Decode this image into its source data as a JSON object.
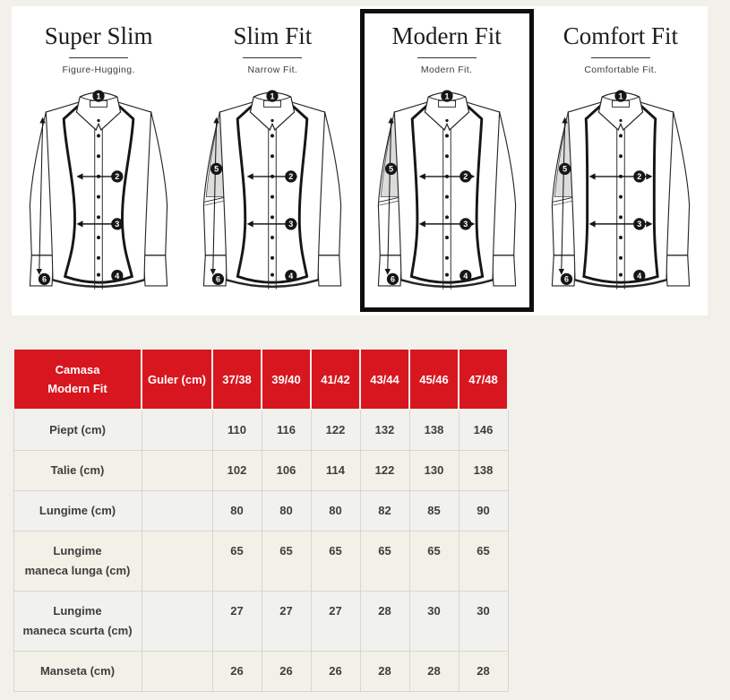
{
  "colors": {
    "page_background": "#f2f0ea",
    "panel_background": "#ffffff",
    "accent_red": "#d8161f",
    "ink": "#1d1d1b",
    "table_text": "#3e3e3e",
    "selected_border": "#0e0e0e",
    "sleeve_shade": "#dcdcda"
  },
  "fits": [
    {
      "id": "super-slim",
      "title": "Super Slim",
      "subtitle": "Figure-Hugging.",
      "selected": false,
      "fit": "super-slim",
      "badges": [
        "1",
        "2",
        "3",
        "4",
        "6"
      ]
    },
    {
      "id": "slim-fit",
      "title": "Slim Fit",
      "subtitle": "Narrow Fit.",
      "selected": false,
      "fit": "slim",
      "badges": [
        "1",
        "2",
        "3",
        "4",
        "5",
        "6"
      ]
    },
    {
      "id": "modern-fit",
      "title": "Modern Fit",
      "subtitle": "Modern Fit.",
      "selected": true,
      "fit": "modern",
      "badges": [
        "1",
        "2",
        "3",
        "4",
        "5",
        "6"
      ]
    },
    {
      "id": "comfort-fit",
      "title": "Comfort Fit",
      "subtitle": "Comfortable Fit.",
      "selected": false,
      "fit": "comfort",
      "badges": [
        "1",
        "2",
        "3",
        "4",
        "5",
        "6"
      ]
    }
  ],
  "table": {
    "title": "Camasa\nModern Fit",
    "columns": [
      "Guler (cm)",
      "37/38",
      "39/40",
      "41/42",
      "43/44",
      "45/46",
      "47/48"
    ],
    "rows": [
      {
        "label": "Piept (cm)",
        "guler": "",
        "values": [
          "110",
          "116",
          "122",
          "132",
          "138",
          "146"
        ]
      },
      {
        "label": "Talie (cm)",
        "guler": "",
        "values": [
          "102",
          "106",
          "114",
          "122",
          "130",
          "138"
        ]
      },
      {
        "label": "Lungime (cm)",
        "guler": "",
        "values": [
          "80",
          "80",
          "80",
          "82",
          "85",
          "90"
        ]
      },
      {
        "label": "Lungime\nmaneca lunga (cm)",
        "guler": "",
        "values": [
          "65",
          "65",
          "65",
          "65",
          "65",
          "65"
        ]
      },
      {
        "label": "Lungime\nmaneca scurta (cm)",
        "guler": "",
        "values": [
          "27",
          "27",
          "27",
          "28",
          "30",
          "30"
        ]
      },
      {
        "label": "Manseta (cm)",
        "guler": "",
        "values": [
          "26",
          "26",
          "26",
          "28",
          "28",
          "28"
        ]
      }
    ]
  },
  "chart_data": {
    "type": "table",
    "title": "Camasa Modern Fit",
    "columns": [
      "Guler (cm)",
      "37/38",
      "39/40",
      "41/42",
      "43/44",
      "45/46",
      "47/48"
    ],
    "rows": [
      [
        "Piept (cm)",
        "",
        110,
        116,
        122,
        132,
        138,
        146
      ],
      [
        "Talie (cm)",
        "",
        102,
        106,
        114,
        122,
        130,
        138
      ],
      [
        "Lungime (cm)",
        "",
        80,
        80,
        80,
        82,
        85,
        90
      ],
      [
        "Lungime maneca lunga (cm)",
        "",
        65,
        65,
        65,
        65,
        65,
        65
      ],
      [
        "Lungime maneca scurta (cm)",
        "",
        27,
        27,
        27,
        28,
        30,
        30
      ],
      [
        "Manseta (cm)",
        "",
        26,
        26,
        26,
        28,
        28,
        28
      ]
    ]
  }
}
